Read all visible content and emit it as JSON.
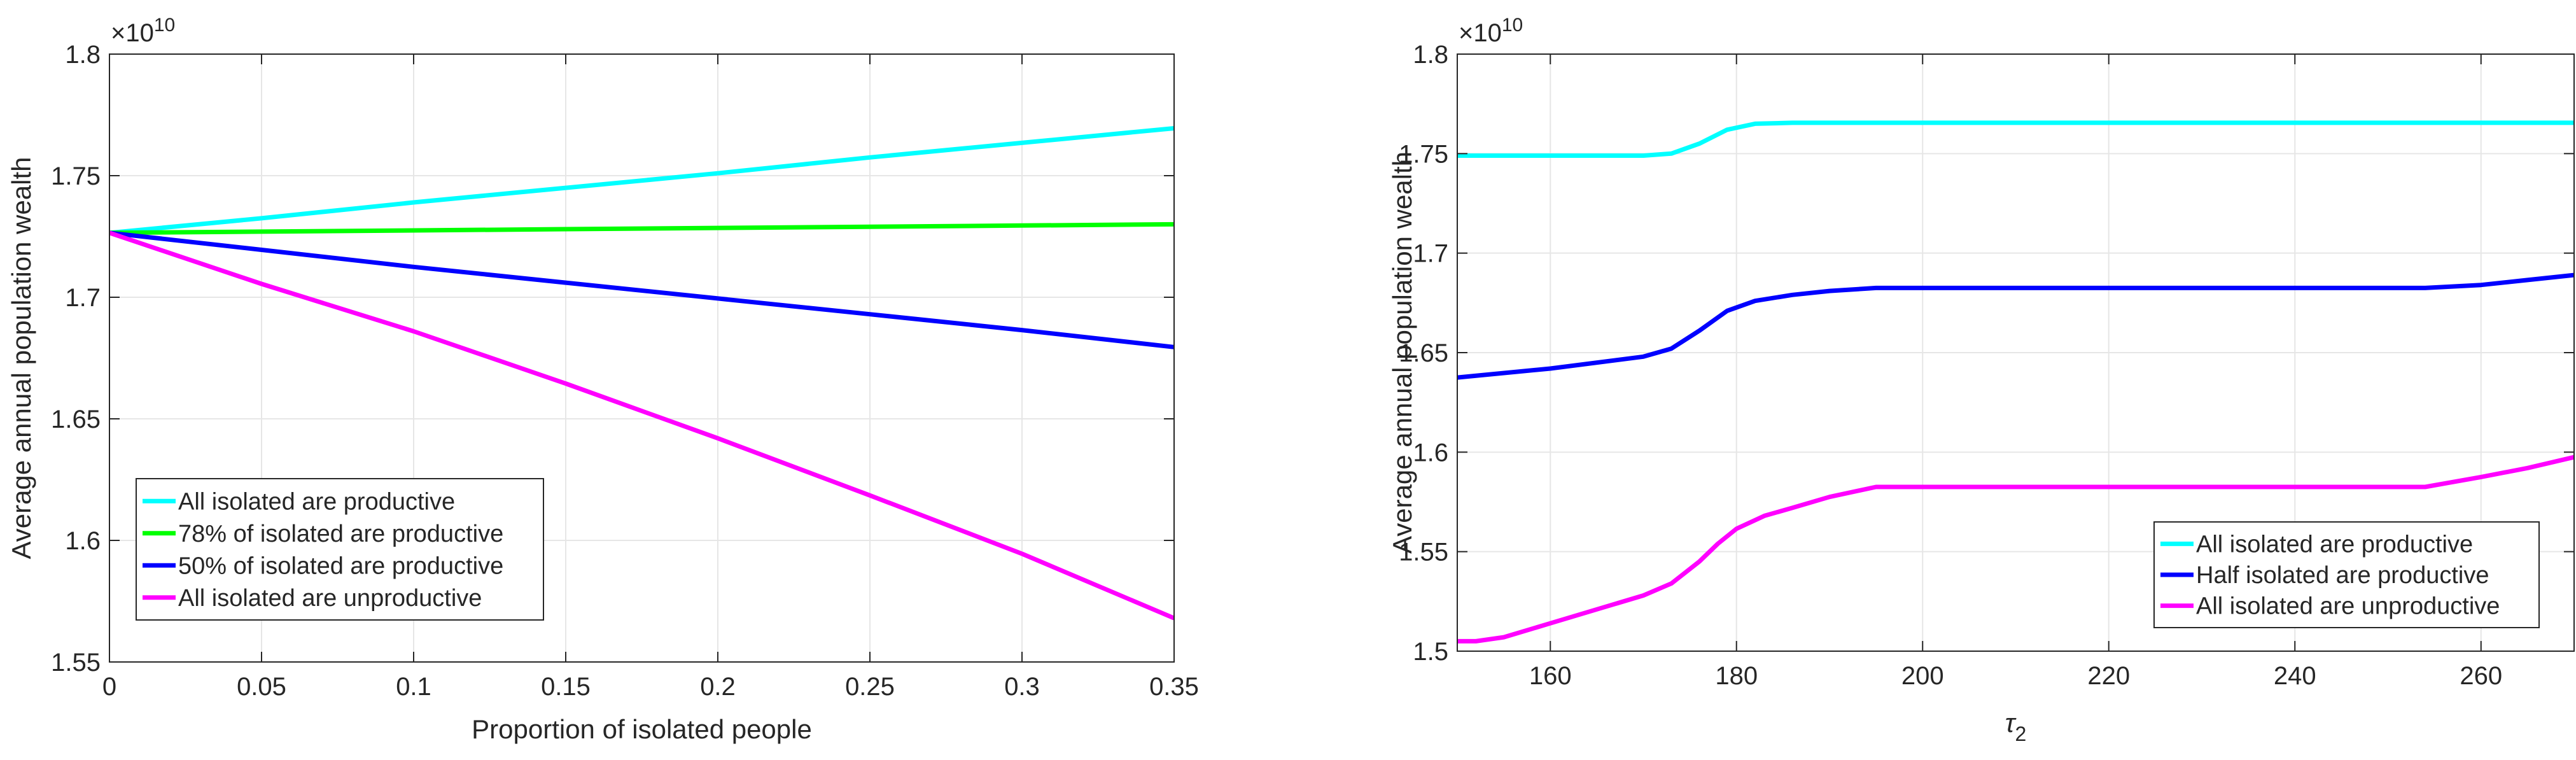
{
  "chart_data": [
    {
      "type": "line",
      "title": "",
      "xlabel": "Proportion of isolated people",
      "ylabel": "Average annual population wealth",
      "y_multiplier": "×10",
      "y_exponent": "10",
      "xlim": [
        0,
        0.35
      ],
      "ylim": [
        1.55,
        1.8
      ],
      "xticks": [
        0,
        0.05,
        0.1,
        0.15,
        0.2,
        0.25,
        0.3,
        0.35
      ],
      "xtick_labels": [
        "0",
        "0.05",
        "0.1",
        "0.15",
        "0.2",
        "0.25",
        "0.3",
        "0.35"
      ],
      "yticks": [
        1.55,
        1.6,
        1.65,
        1.7,
        1.75,
        1.8
      ],
      "ytick_labels": [
        "1.55",
        "1.6",
        "1.65",
        "1.7",
        "1.75",
        "1.8"
      ],
      "grid": true,
      "legend_position": "bottom-left",
      "series": [
        {
          "name": "All isolated are productive",
          "color": "#00FFFF",
          "x": [
            0,
            0.05,
            0.1,
            0.15,
            0.2,
            0.25,
            0.3,
            0.35
          ],
          "y": [
            1.7265,
            1.7325,
            1.739,
            1.745,
            1.751,
            1.7575,
            1.7635,
            1.7695
          ]
        },
        {
          "name": "78% of isolated are productive",
          "color": "#00FF00",
          "x": [
            0,
            0.05,
            0.1,
            0.15,
            0.2,
            0.25,
            0.3,
            0.35
          ],
          "y": [
            1.7265,
            1.727,
            1.7275,
            1.728,
            1.7285,
            1.729,
            1.7295,
            1.73
          ]
        },
        {
          "name": "50% of isolated are productive",
          "color": "#0000FF",
          "x": [
            0,
            0.05,
            0.1,
            0.15,
            0.2,
            0.25,
            0.3,
            0.35
          ],
          "y": [
            1.7265,
            1.7195,
            1.7125,
            1.706,
            1.6995,
            1.693,
            1.6865,
            1.6795
          ]
        },
        {
          "name": "All isolated are unproductive",
          "color": "#FF00FF",
          "x": [
            0,
            0.05,
            0.1,
            0.15,
            0.2,
            0.25,
            0.3,
            0.35
          ],
          "y": [
            1.7265,
            1.7055,
            1.686,
            1.6645,
            1.642,
            1.6185,
            1.5945,
            1.568
          ]
        }
      ]
    },
    {
      "type": "line",
      "title": "",
      "xlabel_base": "τ",
      "xlabel_sub": "2",
      "ylabel": "Average annual population wealth",
      "y_multiplier": "×10",
      "y_exponent": "10",
      "xlim": [
        150,
        270
      ],
      "ylim": [
        1.5,
        1.8
      ],
      "xticks": [
        160,
        180,
        200,
        220,
        240,
        260
      ],
      "xtick_labels": [
        "160",
        "180",
        "200",
        "220",
        "240",
        "260"
      ],
      "yticks": [
        1.5,
        1.55,
        1.6,
        1.65,
        1.7,
        1.75,
        1.8
      ],
      "ytick_labels": [
        "1.5",
        "1.55",
        "1.6",
        "1.65",
        "1.7",
        "1.75",
        "1.8"
      ],
      "grid": true,
      "legend_position": "bottom-right",
      "series": [
        {
          "name": "All isolated are productive",
          "color": "#00FFFF",
          "x": [
            150,
            160,
            170,
            173,
            176,
            179,
            182,
            186,
            190,
            200,
            220,
            240,
            260,
            270
          ],
          "y": [
            1.749,
            1.749,
            1.749,
            1.75,
            1.755,
            1.762,
            1.765,
            1.7655,
            1.7655,
            1.7655,
            1.7655,
            1.7655,
            1.7655,
            1.7655
          ]
        },
        {
          "name": "Half isolated are productive",
          "color": "#0000FF",
          "x": [
            150,
            160,
            170,
            173,
            176,
            179,
            182,
            186,
            190,
            195,
            200,
            220,
            240,
            254,
            260,
            265,
            270
          ],
          "y": [
            1.6375,
            1.642,
            1.648,
            1.652,
            1.661,
            1.671,
            1.676,
            1.679,
            1.681,
            1.6825,
            1.6825,
            1.6825,
            1.6825,
            1.6825,
            1.684,
            1.6865,
            1.689
          ]
        },
        {
          "name": "All isolated are unproductive",
          "color": "#FF00FF",
          "x": [
            150,
            152,
            155,
            160,
            165,
            170,
            173,
            176,
            178,
            180,
            183,
            186,
            190,
            195,
            200,
            220,
            240,
            254,
            260,
            265,
            270
          ],
          "y": [
            1.505,
            1.505,
            1.507,
            1.514,
            1.521,
            1.528,
            1.534,
            1.545,
            1.554,
            1.5615,
            1.568,
            1.572,
            1.5775,
            1.5825,
            1.5825,
            1.5825,
            1.5825,
            1.5825,
            1.5875,
            1.592,
            1.5975
          ]
        }
      ]
    }
  ]
}
